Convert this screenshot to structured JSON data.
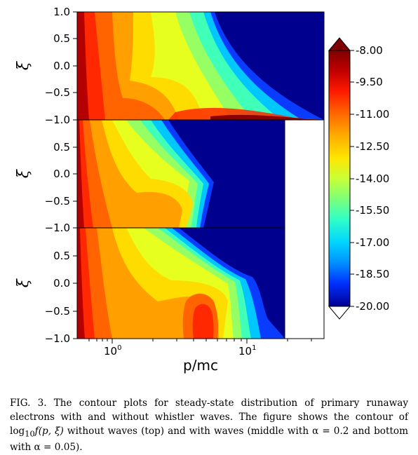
{
  "figure": {
    "panels": [
      {
        "id": "top",
        "ylabel": "ξ",
        "yticks": [
          "1.0",
          "0.5",
          "0.0",
          "−0.5",
          "−1.0"
        ]
      },
      {
        "id": "middle",
        "ylabel": "ξ",
        "yticks": [
          "1.0",
          "0.5",
          "0.0",
          "−0.5",
          "−1.0"
        ]
      },
      {
        "id": "bottom",
        "ylabel": "ξ",
        "yticks": [
          "1.0",
          "0.5",
          "0.0",
          "−0.5",
          "−1.0"
        ]
      }
    ],
    "xlabel": "p/mc",
    "xticks": [
      {
        "base": "10",
        "exp": "0"
      },
      {
        "base": "10",
        "exp": "1"
      }
    ],
    "colorbar": {
      "ticks": [
        "-8.00",
        "-9.50",
        "-11.00",
        "-12.50",
        "-14.00",
        "-15.50",
        "-17.00",
        "-18.50",
        "-20.00"
      ],
      "colors": {
        "max": "#7f0000",
        "min": "#00007f"
      }
    }
  },
  "chart_data": {
    "type": "heatmap",
    "xlabel": "p/mc",
    "ylabel": "ξ",
    "x_scale": "log",
    "ylim": [
      -1.0,
      1.0
    ],
    "zlim": [
      -20.0,
      -8.0
    ],
    "colorbar_ticks": [
      -8.0,
      -9.5,
      -11.0,
      -12.5,
      -14.0,
      -15.5,
      -17.0,
      -18.5,
      -20.0
    ],
    "panels": [
      "top",
      "middle",
      "bottom"
    ]
  },
  "caption": {
    "label": "FIG. 3.",
    "text_1": " The contour plots for steady-state distribution of primary runaway electrons with and without whistler waves. The figure shows the contour of ",
    "math_log": "log",
    "math_sub": "10",
    "math_f": "f(p, ξ)",
    "text_2": " without waves (top) and with waves (middle with α = 0.2 and bottom with α = 0.05)."
  }
}
